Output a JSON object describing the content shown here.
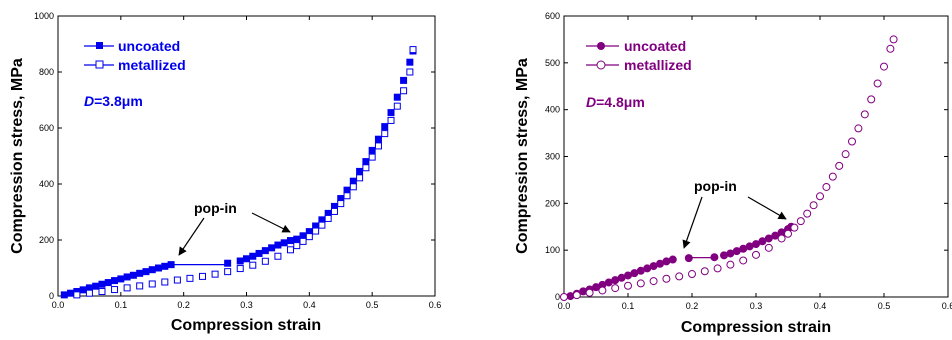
{
  "chart_data": [
    {
      "type": "scatter",
      "color": "#0000ee",
      "xlabel": "Compression strain",
      "ylabel": "Compression stress, MPa",
      "xlim": [
        0.0,
        0.6
      ],
      "ylim": [
        0,
        1000
      ],
      "xticks": [
        0.0,
        0.1,
        0.2,
        0.3,
        0.4,
        0.5,
        0.6
      ],
      "yticks": [
        0,
        200,
        400,
        600,
        800,
        1000
      ],
      "xtick_labels": [
        "0.0",
        "0.1",
        "0.2",
        "0.3",
        "0.4",
        "0.5",
        "0.6"
      ],
      "ytick_labels": [
        "0",
        "200",
        "400",
        "600",
        "800",
        "1000"
      ],
      "legend_position": "top-left",
      "series": [
        {
          "name": "uncoated",
          "marker": "filled-square",
          "x": [
            0.01,
            0.02,
            0.03,
            0.04,
            0.05,
            0.06,
            0.07,
            0.08,
            0.09,
            0.1,
            0.11,
            0.12,
            0.13,
            0.14,
            0.15,
            0.16,
            0.17,
            0.18,
            0.27,
            0.29,
            0.3,
            0.31,
            0.32,
            0.33,
            0.34,
            0.35,
            0.36,
            0.37,
            0.38,
            0.39,
            0.4,
            0.41,
            0.42,
            0.43,
            0.44,
            0.45,
            0.46,
            0.47,
            0.48,
            0.49,
            0.5,
            0.51,
            0.52,
            0.53,
            0.54,
            0.55,
            0.56,
            0.565
          ],
          "y": [
            4,
            10,
            16,
            22,
            29,
            35,
            42,
            48,
            55,
            61,
            68,
            74,
            81,
            87,
            94,
            100,
            106,
            112,
            117,
            125,
            133,
            142,
            152,
            162,
            172,
            182,
            190,
            198,
            203,
            215,
            230,
            250,
            272,
            295,
            320,
            348,
            378,
            410,
            445,
            480,
            520,
            560,
            605,
            655,
            710,
            770,
            835,
            875
          ],
          "pop_in_segment": {
            "x": [
              0.18,
              0.27
            ],
            "y": [
              112,
              112
            ]
          }
        },
        {
          "name": "metallized",
          "marker": "open-square",
          "x": [
            0.03,
            0.05,
            0.07,
            0.09,
            0.11,
            0.13,
            0.15,
            0.17,
            0.19,
            0.21,
            0.23,
            0.25,
            0.27,
            0.29,
            0.31,
            0.33,
            0.35,
            0.37,
            0.38,
            0.39,
            0.4,
            0.41,
            0.42,
            0.43,
            0.44,
            0.45,
            0.46,
            0.47,
            0.48,
            0.49,
            0.5,
            0.51,
            0.52,
            0.53,
            0.54,
            0.55,
            0.56,
            0.565
          ],
          "y": [
            4,
            10,
            16,
            23,
            29,
            36,
            43,
            50,
            57,
            63,
            70,
            78,
            87,
            98,
            110,
            124,
            142,
            165,
            180,
            195,
            212,
            232,
            253,
            277,
            302,
            330,
            358,
            390,
            422,
            458,
            496,
            536,
            580,
            627,
            678,
            733,
            800,
            880
          ]
        }
      ],
      "annotations": [
        {
          "text": "D=3.8μm",
          "italic_part": "D",
          "rest": "=3.8μm"
        },
        {
          "text": "pop-in",
          "arrows_to": [
            {
              "x": 0.18,
              "y": 112
            },
            {
              "x": 0.375,
              "y": 196
            }
          ]
        }
      ]
    },
    {
      "type": "scatter",
      "color": "#800080",
      "xlabel": "Compression strain",
      "ylabel": "Compression stress, MPa",
      "xlim": [
        0.0,
        0.6
      ],
      "ylim": [
        0,
        600
      ],
      "xticks": [
        0.0,
        0.1,
        0.2,
        0.3,
        0.4,
        0.5,
        0.6
      ],
      "yticks": [
        0,
        100,
        200,
        300,
        400,
        500,
        600
      ],
      "xtick_labels": [
        "0.0",
        "0.1",
        "0.2",
        "0.3",
        "0.4",
        "0.5",
        "0.6"
      ],
      "ytick_labels": [
        "0",
        "100",
        "200",
        "300",
        "400",
        "500",
        "600"
      ],
      "legend_position": "top-left",
      "series": [
        {
          "name": "uncoated",
          "marker": "filled-circle",
          "x": [
            0.01,
            0.02,
            0.03,
            0.04,
            0.05,
            0.06,
            0.07,
            0.08,
            0.09,
            0.1,
            0.11,
            0.12,
            0.13,
            0.14,
            0.15,
            0.16,
            0.17,
            0.195,
            0.235,
            0.25,
            0.26,
            0.27,
            0.28,
            0.29,
            0.3,
            0.31,
            0.32,
            0.33,
            0.34,
            0.35,
            0.355
          ],
          "y": [
            2,
            7,
            12,
            16,
            21,
            26,
            31,
            36,
            41,
            46,
            51,
            56,
            61,
            66,
            71,
            76,
            80,
            83,
            85,
            89,
            93,
            98,
            103,
            108,
            113,
            119,
            125,
            131,
            138,
            145,
            150
          ],
          "pop_in_segment": {
            "x": [
              0.195,
              0.235
            ],
            "y": [
              84,
              84
            ]
          }
        },
        {
          "name": "metallized",
          "marker": "open-circle",
          "x": [
            0.0,
            0.02,
            0.04,
            0.06,
            0.08,
            0.1,
            0.12,
            0.14,
            0.16,
            0.18,
            0.2,
            0.22,
            0.24,
            0.26,
            0.28,
            0.3,
            0.32,
            0.34,
            0.35,
            0.36,
            0.37,
            0.38,
            0.39,
            0.4,
            0.41,
            0.42,
            0.43,
            0.44,
            0.45,
            0.46,
            0.47,
            0.48,
            0.49,
            0.5,
            0.51,
            0.515
          ],
          "y": [
            0,
            4,
            9,
            14,
            19,
            24,
            29,
            34,
            39,
            44,
            49,
            55,
            61,
            69,
            78,
            90,
            105,
            125,
            135,
            148,
            162,
            178,
            196,
            215,
            235,
            257,
            280,
            305,
            332,
            360,
            390,
            422,
            456,
            492,
            530,
            550
          ]
        }
      ],
      "annotations": [
        {
          "text": "D=4.8μm",
          "italic_part": "D",
          "rest": "=4.8μm"
        },
        {
          "text": "pop-in",
          "arrows_to": [
            {
              "x": 0.19,
              "y": 84
            },
            {
              "x": 0.355,
              "y": 148
            }
          ]
        }
      ]
    }
  ],
  "legend": {
    "left": [
      "uncoated",
      "metallized"
    ],
    "right": [
      "uncoated",
      "metallized"
    ]
  },
  "text": {
    "left_xlabel": "Compression strain",
    "left_ylabel": "Compression stress, MPa",
    "right_xlabel": "Compression strain",
    "right_ylabel": "Compression stress, MPa",
    "left_d_italic": "D",
    "left_d_rest": "=3.8μm",
    "right_d_italic": "D",
    "right_d_rest": "=4.8μm",
    "left_popin": "pop-in",
    "right_popin": "pop-in"
  }
}
